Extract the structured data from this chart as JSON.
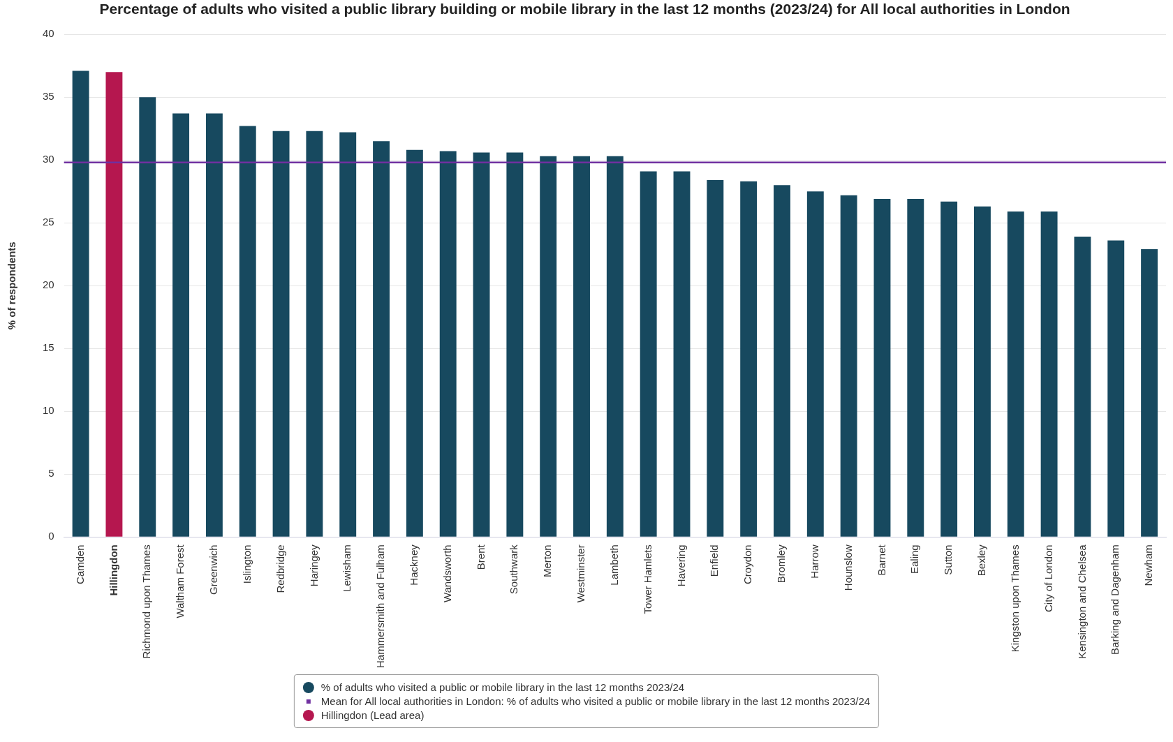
{
  "chart_data": {
    "type": "bar",
    "title": "Percentage of adults who visited a public library building or mobile library in the last 12 months (2023/24) for All local authorities in London",
    "ylabel": "% of respondents",
    "categories": [
      "Camden",
      "Hillingdon",
      "Richmond upon Thames",
      "Waltham Forest",
      "Greenwich",
      "Islington",
      "Redbridge",
      "Haringey",
      "Lewisham",
      "Hammersmith and Fulham",
      "Hackney",
      "Wandsworth",
      "Brent",
      "Southwark",
      "Merton",
      "Westminster",
      "Lambeth",
      "Tower Hamlets",
      "Havering",
      "Enfield",
      "Croydon",
      "Bromley",
      "Harrow",
      "Hounslow",
      "Barnet",
      "Ealing",
      "Sutton",
      "Bexley",
      "Kingston upon Thames",
      "City of London",
      "Kensington and Chelsea",
      "Barking and Dagenham",
      "Newham"
    ],
    "series": [
      {
        "name": "% of adults who visited a public or mobile library in the last 12 months 2023/24",
        "color": "#17495f",
        "values": [
          37.1,
          null,
          35.0,
          33.7,
          33.7,
          32.7,
          32.3,
          32.3,
          32.2,
          31.5,
          30.8,
          30.7,
          30.6,
          30.6,
          30.3,
          30.3,
          30.3,
          29.1,
          29.1,
          28.4,
          28.3,
          28.0,
          27.5,
          27.2,
          26.9,
          26.9,
          26.7,
          26.3,
          25.9,
          25.9,
          23.9,
          23.6,
          22.9
        ]
      },
      {
        "name": "Hillingdon (Lead area)",
        "color": "#b5174f",
        "values": [
          null,
          37.0,
          null,
          null,
          null,
          null,
          null,
          null,
          null,
          null,
          null,
          null,
          null,
          null,
          null,
          null,
          null,
          null,
          null,
          null,
          null,
          null,
          null,
          null,
          null,
          null,
          null,
          null,
          null,
          null,
          null,
          null,
          null
        ]
      }
    ],
    "ref_lines": [
      {
        "axis": "y",
        "value": 29.8,
        "label": "Mean for All local authorities in London: % of adults who visited a public or mobile library in the last 12 months 2023/24",
        "color": "#7030a0"
      }
    ],
    "ylim": [
      0,
      40
    ],
    "yticks": [
      0,
      5,
      10,
      15,
      20,
      25,
      30,
      35,
      40
    ],
    "grid": "y",
    "legend": "bottom"
  }
}
